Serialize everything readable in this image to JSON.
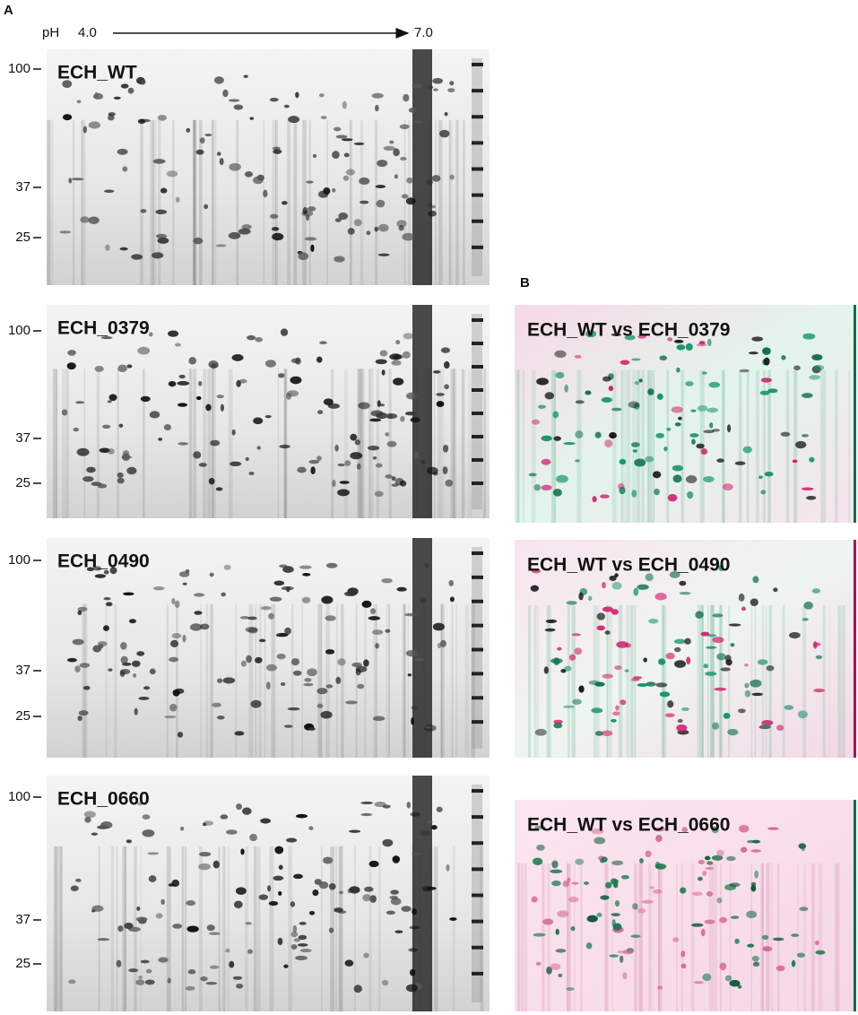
{
  "panel_a": {
    "label": "A",
    "ph_label": "pH",
    "ph_start": "4.0",
    "ph_end": "7.0",
    "gels": [
      {
        "name": "ECH_WT",
        "mw_markers": [
          100,
          37,
          25
        ]
      },
      {
        "name": "ECH_0379",
        "mw_markers": [
          100,
          37,
          25
        ]
      },
      {
        "name": "ECH_0490",
        "mw_markers": [
          100,
          37,
          25
        ]
      },
      {
        "name": "ECH_0660",
        "mw_markers": [
          100,
          37,
          25
        ]
      }
    ]
  },
  "panel_b": {
    "label": "B",
    "overlays": [
      {
        "name": "ECH_WT vs ECH_0379"
      },
      {
        "name": "ECH_WT vs ECH_0490"
      },
      {
        "name": "ECH_WT vs ECH_0660"
      }
    ]
  }
}
